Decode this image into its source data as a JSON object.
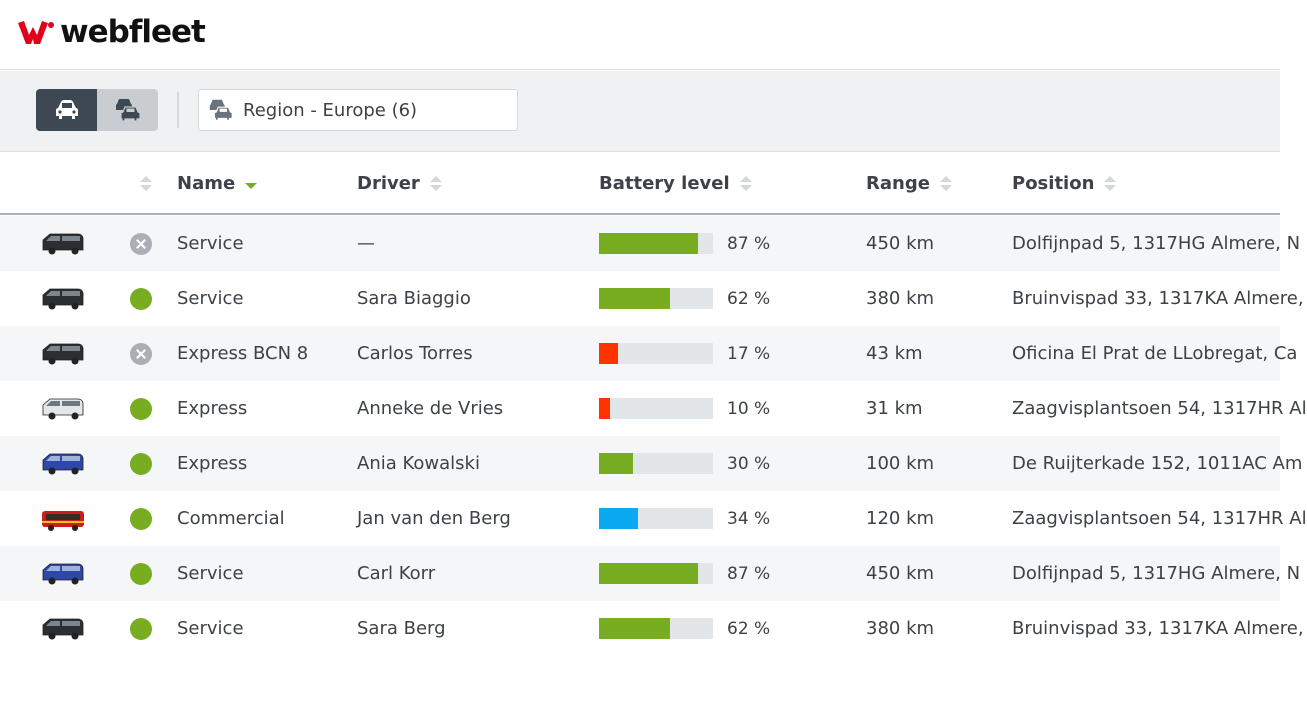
{
  "brand": {
    "name": "webfleet",
    "logo_color": "#e3001b"
  },
  "toolbar": {
    "view_single": "car-icon",
    "view_group": "cars-group-icon",
    "region_label": "Region - Europe (6)"
  },
  "table": {
    "headers": {
      "name": "Name",
      "driver": "Driver",
      "battery": "Battery level",
      "range": "Range",
      "position": "Position"
    },
    "sorted_column": "name",
    "rows": [
      {
        "vehicle": "black-van-icon",
        "status": "inactive",
        "name": "Service",
        "driver": "—",
        "battery": 87,
        "battery_label": "87 %",
        "battery_color": "#78ad21",
        "range": "450 km",
        "position": "Dolfijnpad 5, 1317HG Almere, N"
      },
      {
        "vehicle": "black-van-icon",
        "status": "active",
        "name": "Service",
        "driver": "Sara Biaggio",
        "battery": 62,
        "battery_label": "62 %",
        "battery_color": "#78ad21",
        "range": "380 km",
        "position": "Bruinvispad 33, 1317KA Almere,"
      },
      {
        "vehicle": "black-van-icon",
        "status": "inactive",
        "name": "Express BCN 8",
        "driver": "Carlos Torres",
        "battery": 17,
        "battery_label": "17 %",
        "battery_color": "#ff3300",
        "range": "43 km",
        "position": "Oficina El Prat de LLobregat, Ca"
      },
      {
        "vehicle": "white-van-icon",
        "status": "active",
        "name": "Express",
        "driver": "Anneke de Vries",
        "battery": 10,
        "battery_label": "10 %",
        "battery_color": "#ff3300",
        "range": "31 km",
        "position": "Zaagvisplantsoen 54, 1317HR Al"
      },
      {
        "vehicle": "blue-van-icon",
        "status": "active",
        "name": "Express",
        "driver": "Ania Kowalski",
        "battery": 30,
        "battery_label": "30 %",
        "battery_color": "#78ad21",
        "range": "100 km",
        "position": "De Ruijterkade 152, 1011AC Am"
      },
      {
        "vehicle": "red-bus-icon",
        "status": "active",
        "name": "Commercial",
        "driver": "Jan van den Berg",
        "battery": 34,
        "battery_label": "34 %",
        "battery_color": "#0aa9f2",
        "range": "120 km",
        "position": "Zaagvisplantsoen 54, 1317HR Al"
      },
      {
        "vehicle": "blue-van-icon",
        "status": "active",
        "name": "Service",
        "driver": "Carl  Korr",
        "battery": 87,
        "battery_label": "87 %",
        "battery_color": "#78ad21",
        "range": "450 km",
        "position": "Dolfijnpad 5, 1317HG Almere, N"
      },
      {
        "vehicle": "black-van-icon",
        "status": "active",
        "name": "Service",
        "driver": "Sara Berg",
        "battery": 62,
        "battery_label": "62 %",
        "battery_color": "#78ad21",
        "range": "380 km",
        "position": "Bruinvispad 33, 1317KA Almere,"
      }
    ]
  }
}
